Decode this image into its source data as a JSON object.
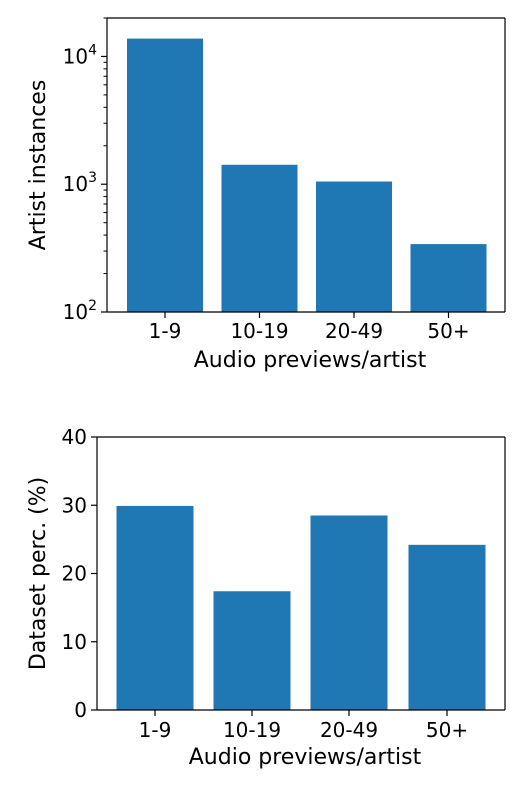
{
  "chart_data": [
    {
      "type": "bar",
      "categories": [
        "1-9",
        "10-19",
        "20-49",
        "50+"
      ],
      "values": [
        13800,
        1420,
        1050,
        340
      ],
      "xlabel": "Audio previews/artist",
      "ylabel": "Artist instances",
      "yscale": "log",
      "ylim": [
        100,
        20000
      ],
      "yticks": [
        100,
        1000,
        10000
      ],
      "ytick_labels": [
        {
          "base": "10",
          "exp": "2"
        },
        {
          "base": "10",
          "exp": "3"
        },
        {
          "base": "10",
          "exp": "4"
        }
      ],
      "bar_color": "#1f77b4",
      "grid": false
    },
    {
      "type": "bar",
      "categories": [
        "1-9",
        "10-19",
        "20-49",
        "50+"
      ],
      "values": [
        29.9,
        17.4,
        28.5,
        24.2
      ],
      "xlabel": "Audio previews/artist",
      "ylabel": "Dataset perc. (%)",
      "yscale": "linear",
      "ylim": [
        0,
        40
      ],
      "yticks": [
        0,
        10,
        20,
        30,
        40
      ],
      "ytick_labels": [
        "0",
        "10",
        "20",
        "30",
        "40"
      ],
      "bar_color": "#1f77b4",
      "grid": false
    }
  ]
}
